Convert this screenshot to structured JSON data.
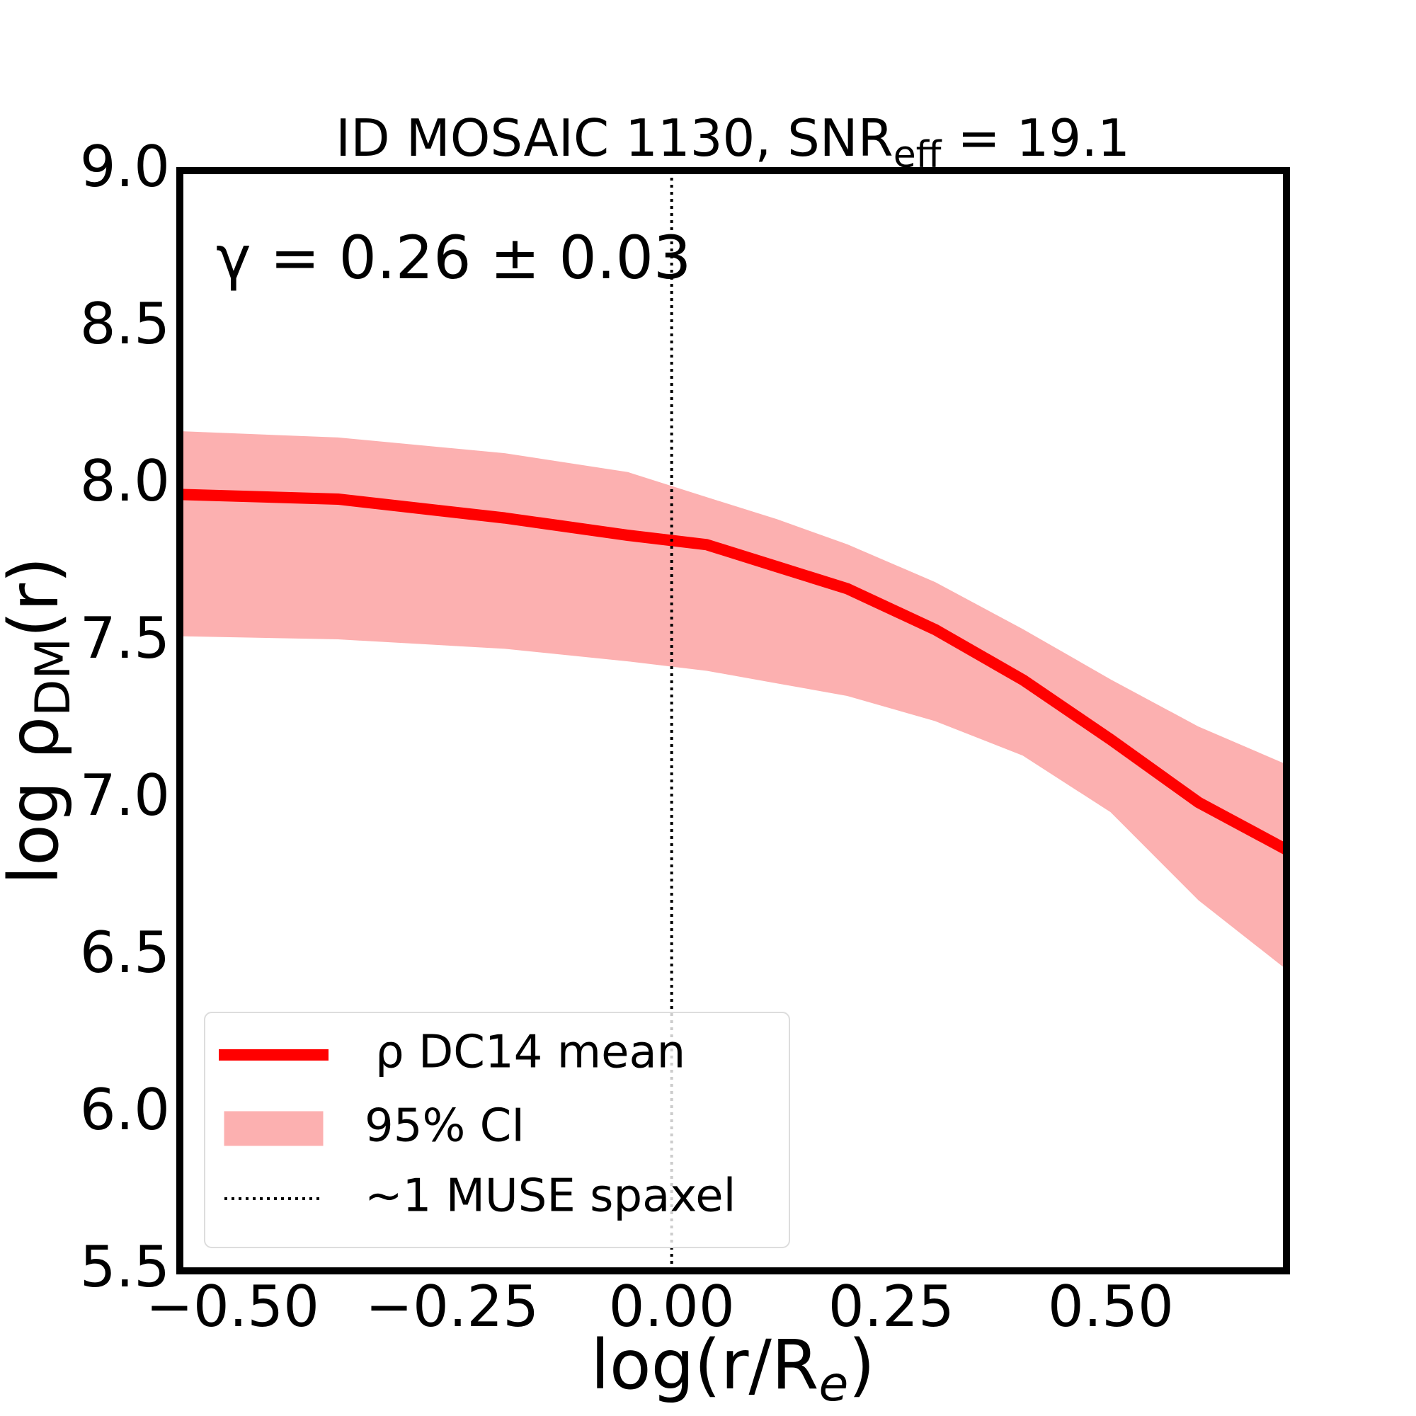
{
  "chart_data": {
    "type": "line",
    "title": "ID MOSAIC 1130, SNR",
    "title_sub": "eff",
    "title_tail": " = 19.1",
    "x_label": "log(r/R",
    "x_label_sub": "e",
    "x_label_tail": ")",
    "y_label": "log ρ",
    "y_label_sub": "DM",
    "y_label_tail": "(r)",
    "annotation": "γ = 0.26 ± 0.03",
    "x": [
      -0.56,
      -0.38,
      -0.19,
      -0.05,
      0.04,
      0.12,
      0.2,
      0.3,
      0.4,
      0.5,
      0.6,
      0.7
    ],
    "series": [
      {
        "name": "ρ DC14 mean",
        "color": "#ff0000",
        "values": [
          7.97,
          7.955,
          7.895,
          7.84,
          7.81,
          7.74,
          7.67,
          7.54,
          7.38,
          7.19,
          6.99,
          6.84
        ]
      }
    ],
    "band": {
      "name": "95% CI",
      "color": "#fcb0b0",
      "upper": [
        8.17,
        8.15,
        8.1,
        8.04,
        7.96,
        7.89,
        7.81,
        7.69,
        7.54,
        7.38,
        7.23,
        7.11
      ],
      "lower": [
        7.52,
        7.51,
        7.48,
        7.44,
        7.41,
        7.37,
        7.33,
        7.25,
        7.14,
        6.96,
        6.68,
        6.46
      ]
    },
    "vline": {
      "x": 0,
      "name": "∼1 MUSE spaxel",
      "color": "#000000"
    },
    "xlim": [
      -0.56,
      0.7
    ],
    "ylim": [
      5.5,
      9.0
    ],
    "xticks": [
      {
        "value": -0.5,
        "label": "−0.50"
      },
      {
        "value": -0.25,
        "label": "−0.25"
      },
      {
        "value": 0,
        "label": "0.00"
      },
      {
        "value": 0.25,
        "label": "0.25"
      },
      {
        "value": 0.5,
        "label": "0.50"
      }
    ],
    "yticks": [
      5.5,
      {
        "value": 6,
        "label": "6.0"
      },
      6.5,
      {
        "value": 7,
        "label": "7.0"
      },
      7.5,
      {
        "value": 8,
        "label": "8.0"
      },
      8.5,
      {
        "value": 9,
        "label": "9.0"
      }
    ],
    "legend": "lower left"
  }
}
